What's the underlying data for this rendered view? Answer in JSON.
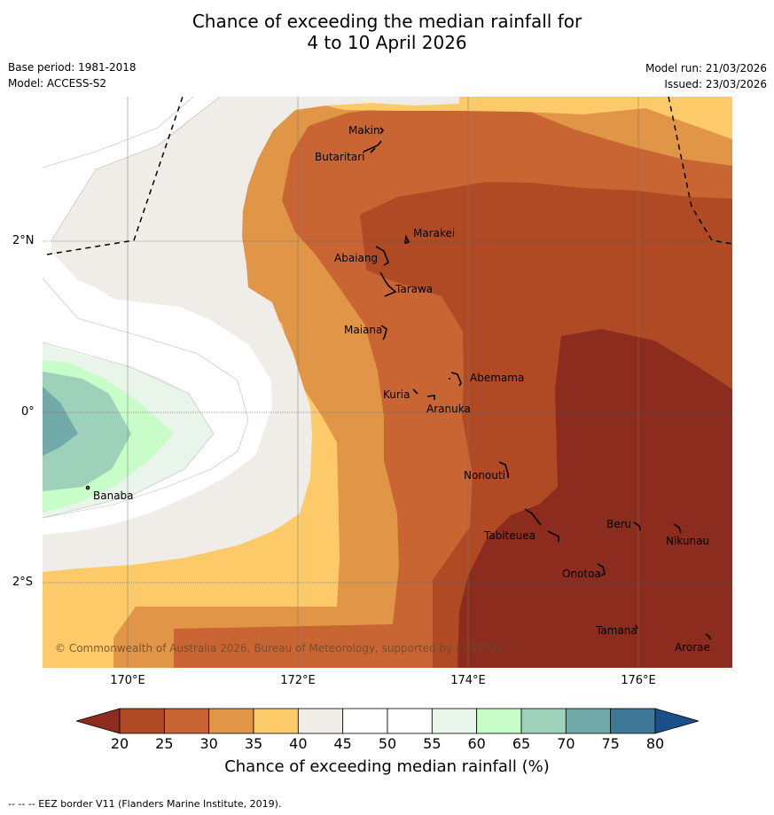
{
  "title_line1": "Chance of exceeding the median rainfall for",
  "title_line2": "4 to 10 April 2026",
  "base_period": "Base period: 1981-2018",
  "model": "Model: ACCESS-S2",
  "model_run": "Model run: 21/03/2026",
  "issued": "Issued: 23/03/2026",
  "copyright": "© Commonwealth of Australia 2026, Bureau of Meteorology, supported by COSPPac",
  "lat_labels": [
    "2°N",
    "0°",
    "2°S"
  ],
  "lon_labels": [
    "170°E",
    "172°E",
    "174°E",
    "176°E"
  ],
  "islands": [
    "Makin",
    "Butaritari",
    "Marakei",
    "Abaiang",
    "Tarawa",
    "Maiana",
    "Abemama",
    "Kuria",
    "Aranuka",
    "Banaba",
    "Nonouti",
    "Beru",
    "Nikunau",
    "Tabiteuea",
    "Onotoa",
    "Tamana",
    "Arorae"
  ],
  "colorbar": {
    "title": "Chance of exceeding median rainfall (%)",
    "ticks": [
      "20",
      "25",
      "30",
      "35",
      "40",
      "45",
      "50",
      "55",
      "60",
      "65",
      "70",
      "75",
      "80"
    ],
    "colors": [
      "#8b2c1e",
      "#b04a25",
      "#c96433",
      "#e19547",
      "#fdca6a",
      "#f0ece7",
      "#ffffff",
      "#ffffff",
      "#e9f4ea",
      "#c8fcc8",
      "#9ed1ba",
      "#72a9a9",
      "#3f7897",
      "#1a4f8a"
    ]
  },
  "footer": "--  --  -- EEZ border V11 (Flanders Marine Institute, 2019)."
}
